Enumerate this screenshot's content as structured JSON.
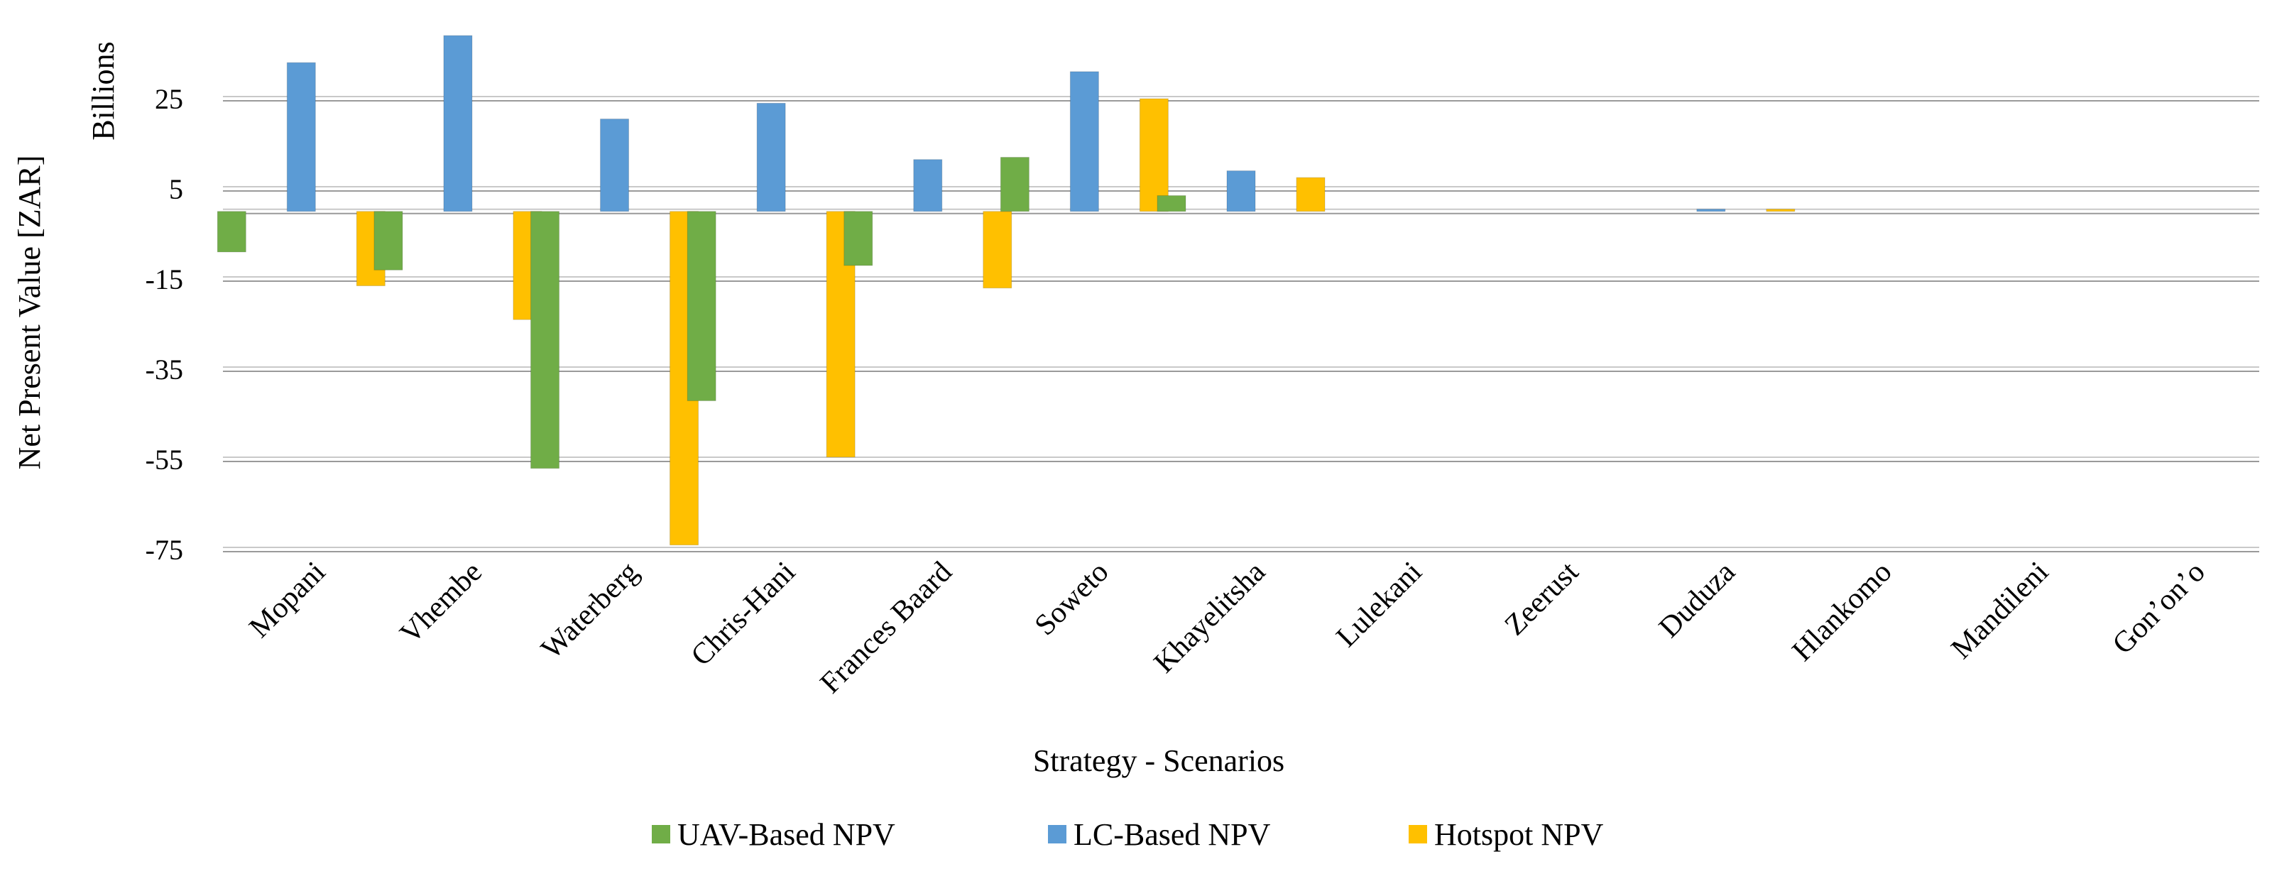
{
  "chart_data": {
    "type": "bar",
    "title": "",
    "xlabel": "Strategy - Scenarios",
    "ylabel": "Net Present Value [ZAR]",
    "yunit_label": "Billions",
    "ylim": [
      -75,
      45
    ],
    "yticks": [
      25,
      5,
      -15,
      -35,
      -55,
      -75
    ],
    "yticks_labels": [
      "25",
      "5",
      "-15",
      "-35",
      "-55",
      "-75"
    ],
    "grid": true,
    "legend_position": "bottom",
    "categories": [
      "Mopani",
      "Vhembe",
      "Waterberg",
      "Chris-Hani",
      "Frances Baard",
      "Soweto",
      "Khayelitsha",
      "Lulekani",
      "Zeerust",
      "Duduza",
      "Hlankomo",
      "Mandileni",
      "Gon’on’o"
    ],
    "series": [
      {
        "name": "UAV-Based NPV",
        "color": "#70ad47",
        "values": [
          -9,
          -13,
          -57,
          -42,
          -12,
          12,
          3.5,
          0,
          0,
          0,
          0,
          0,
          0
        ]
      },
      {
        "name": "LC-Based NPV",
        "color": "#5b9bd5",
        "values": [
          33,
          39,
          20.5,
          24,
          11.5,
          31,
          9,
          0,
          0,
          0.5,
          0,
          0,
          0
        ]
      },
      {
        "name": "Hotspot NPV",
        "color": "#ffc000",
        "values": [
          -16.5,
          -24,
          -74,
          -54.5,
          -17,
          25,
          7.5,
          0,
          0,
          0.5,
          0,
          0,
          0
        ]
      }
    ]
  }
}
